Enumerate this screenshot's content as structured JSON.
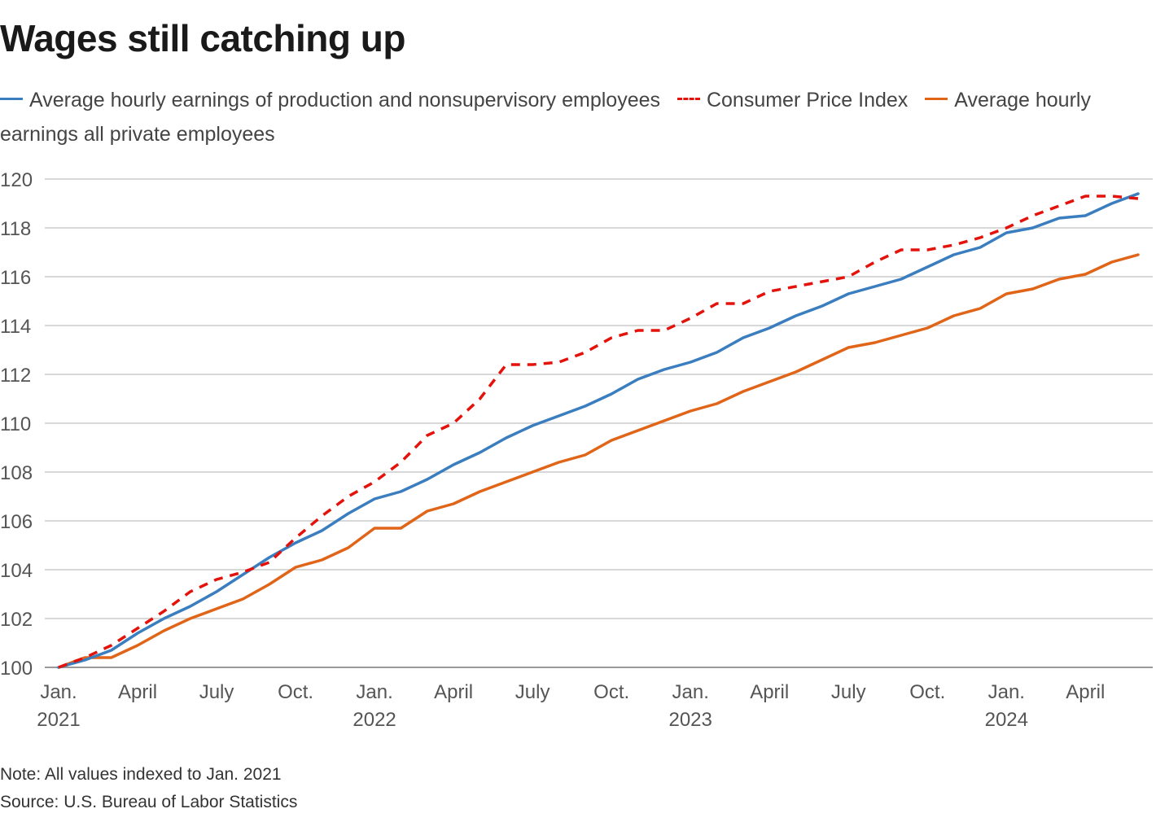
{
  "title": "Wages still catching up",
  "note": "Note: All values indexed to Jan. 2021",
  "source": "Source: U.S. Bureau of Labor Statistics",
  "legend": [
    {
      "label": "Average hourly earnings of production and nonsupervisory employees",
      "color": "#3a7ebf",
      "style": "solid"
    },
    {
      "label": "Consumer Price Index",
      "color": "#e3120b",
      "style": "dashed"
    },
    {
      "label": "Average hourly earnings all private employees",
      "color": "#e06519",
      "style": "solid"
    }
  ],
  "chart_data": {
    "type": "line",
    "title": "Wages still catching up",
    "xlabel": "",
    "ylabel": "",
    "ylim": [
      100,
      120
    ],
    "yticks": [
      "100",
      "102",
      "104",
      "106",
      "108",
      "110",
      "112",
      "114",
      "116",
      "118",
      "120"
    ],
    "grid": true,
    "x": [
      "2021-01",
      "2021-02",
      "2021-03",
      "2021-04",
      "2021-05",
      "2021-06",
      "2021-07",
      "2021-08",
      "2021-09",
      "2021-10",
      "2021-11",
      "2021-12",
      "2022-01",
      "2022-02",
      "2022-03",
      "2022-04",
      "2022-05",
      "2022-06",
      "2022-07",
      "2022-08",
      "2022-09",
      "2022-10",
      "2022-11",
      "2022-12",
      "2023-01",
      "2023-02",
      "2023-03",
      "2023-04",
      "2023-05",
      "2023-06",
      "2023-07",
      "2023-08",
      "2023-09",
      "2023-10",
      "2023-11",
      "2023-12",
      "2024-01",
      "2024-02",
      "2024-03",
      "2024-04",
      "2024-05",
      "2024-06"
    ],
    "xticks": [
      {
        "index": 0,
        "month": "Jan.",
        "year": "2021"
      },
      {
        "index": 3,
        "month": "April",
        "year": ""
      },
      {
        "index": 6,
        "month": "July",
        "year": ""
      },
      {
        "index": 9,
        "month": "Oct.",
        "year": ""
      },
      {
        "index": 12,
        "month": "Jan.",
        "year": "2022"
      },
      {
        "index": 15,
        "month": "April",
        "year": ""
      },
      {
        "index": 18,
        "month": "July",
        "year": ""
      },
      {
        "index": 21,
        "month": "Oct.",
        "year": ""
      },
      {
        "index": 24,
        "month": "Jan.",
        "year": "2023"
      },
      {
        "index": 27,
        "month": "April",
        "year": ""
      },
      {
        "index": 30,
        "month": "July",
        "year": ""
      },
      {
        "index": 33,
        "month": "Oct.",
        "year": ""
      },
      {
        "index": 36,
        "month": "Jan.",
        "year": "2024"
      },
      {
        "index": 39,
        "month": "April",
        "year": ""
      }
    ],
    "series": [
      {
        "name": "Average hourly earnings of production and nonsupervisory employees",
        "color": "#3a7ebf",
        "dashed": false,
        "values": [
          100.0,
          100.3,
          100.7,
          101.4,
          102.0,
          102.5,
          103.1,
          103.8,
          104.5,
          105.1,
          105.6,
          106.3,
          106.9,
          107.2,
          107.7,
          108.3,
          108.8,
          109.4,
          109.9,
          110.3,
          110.7,
          111.2,
          111.8,
          112.2,
          112.5,
          112.9,
          113.5,
          113.9,
          114.4,
          114.8,
          115.3,
          115.6,
          115.9,
          116.4,
          116.9,
          117.2,
          117.8,
          118.0,
          118.4,
          118.5,
          119.0,
          119.4
        ]
      },
      {
        "name": "Consumer Price Index",
        "color": "#e3120b",
        "dashed": true,
        "values": [
          100.0,
          100.4,
          100.9,
          101.6,
          102.3,
          103.1,
          103.6,
          103.9,
          104.3,
          105.3,
          106.2,
          107.0,
          107.6,
          108.4,
          109.5,
          110.0,
          111.0,
          112.4,
          112.4,
          112.5,
          112.9,
          113.5,
          113.8,
          113.8,
          114.3,
          114.9,
          114.9,
          115.4,
          115.6,
          115.8,
          116.0,
          116.6,
          117.1,
          117.1,
          117.3,
          117.6,
          118.0,
          118.5,
          118.9,
          119.3,
          119.3,
          119.2
        ]
      },
      {
        "name": "Average hourly earnings all private employees",
        "color": "#e06519",
        "dashed": false,
        "values": [
          100.0,
          100.4,
          100.4,
          100.9,
          101.5,
          102.0,
          102.4,
          102.8,
          103.4,
          104.1,
          104.4,
          104.9,
          105.7,
          105.7,
          106.4,
          106.7,
          107.2,
          107.6,
          108.0,
          108.4,
          108.7,
          109.3,
          109.7,
          110.1,
          110.5,
          110.8,
          111.3,
          111.7,
          112.1,
          112.6,
          113.1,
          113.3,
          113.6,
          113.9,
          114.4,
          114.7,
          115.3,
          115.5,
          115.9,
          116.1,
          116.6,
          116.9
        ]
      }
    ]
  }
}
